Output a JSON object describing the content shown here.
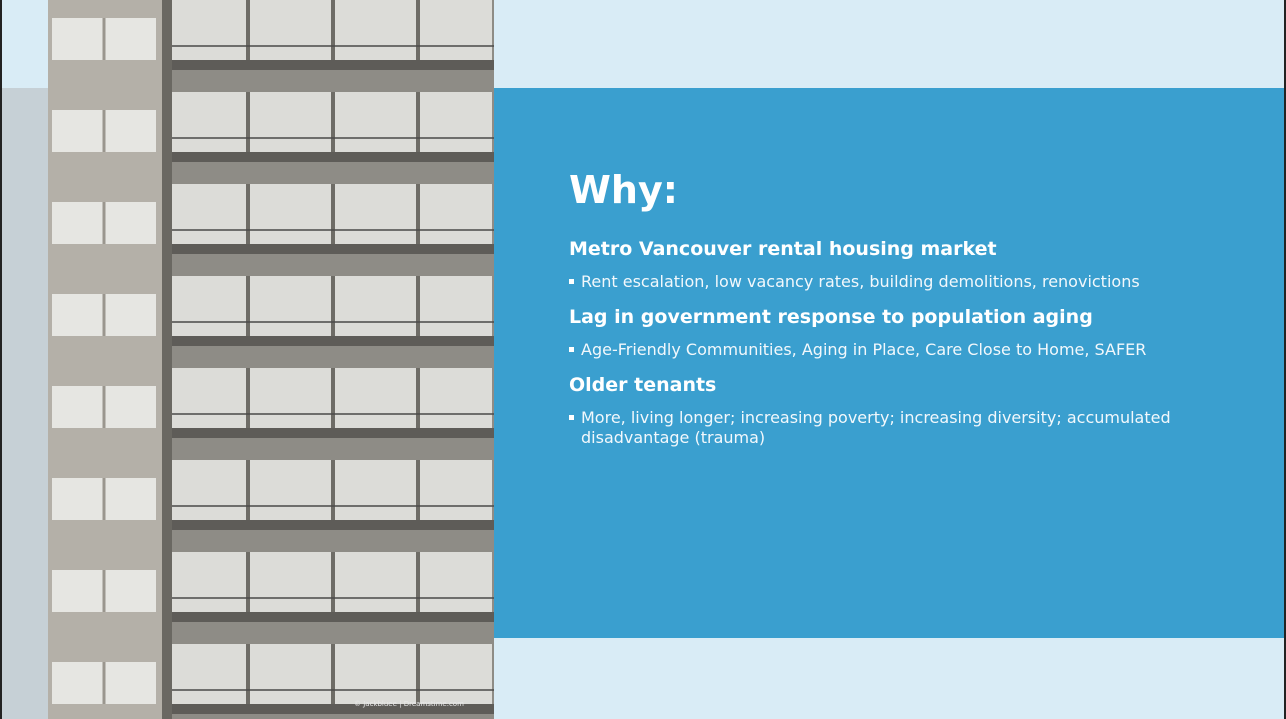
{
  "slide": {
    "title": "Why:",
    "sections": [
      {
        "heading": "Metro Vancouver rental housing market",
        "bullets": [
          "Rent escalation, low vacancy rates, building demolitions, renovictions"
        ]
      },
      {
        "heading": "Lag in government response to population aging",
        "bullets": [
          "Age-Friendly Communities, Aging in Place, Care Close to Home, SAFER"
        ]
      },
      {
        "heading": "Older tenants",
        "bullets": [
          "More, living longer; increasing poverty; increasing diversity; accumulated disadvantage (trauma)"
        ]
      }
    ],
    "image_credit": "© Jackbluee | Dreamstime.com"
  }
}
